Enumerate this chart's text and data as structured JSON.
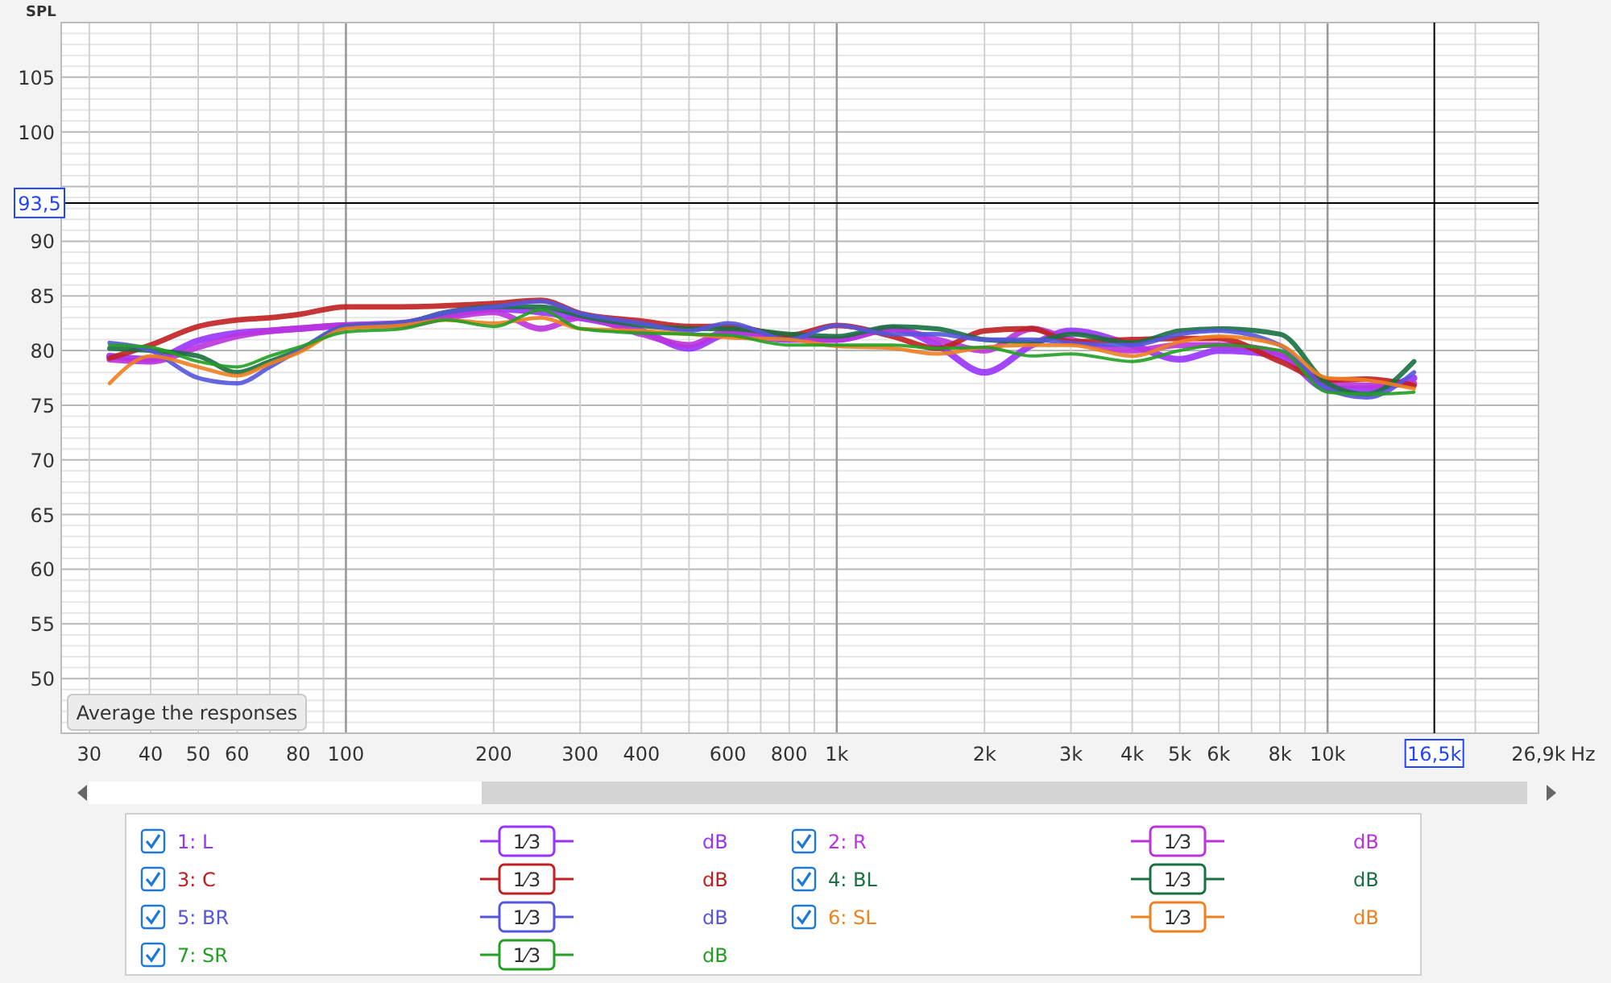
{
  "chart_data": {
    "type": "line",
    "ylabel": "SPL",
    "log": "x",
    "grid": true,
    "legend": "bottom",
    "line_style": "solid",
    "marker": "none",
    "xlim": [
      26.3,
      26900
    ],
    "ylim": [
      45,
      110
    ],
    "xticks": [
      30,
      40,
      50,
      60,
      80,
      100,
      200,
      300,
      400,
      600,
      800,
      {
        "value": 1000,
        "label": "1k"
      },
      {
        "value": 2000,
        "label": "2k"
      },
      {
        "value": 3000,
        "label": "3k"
      },
      {
        "value": 4000,
        "label": "4k"
      },
      {
        "value": 5000,
        "label": "5k"
      },
      {
        "value": 6000,
        "label": "6k"
      },
      {
        "value": 8000,
        "label": "8k"
      },
      {
        "value": 10000,
        "label": "10k"
      },
      {
        "value": 26900,
        "label": "26,9k"
      }
    ],
    "xlabel": "Hz",
    "yticks": [
      50,
      55,
      60,
      65,
      70,
      75,
      80,
      85,
      90,
      {
        "value": 95,
        "label": null
      },
      100,
      105
    ],
    "ref_lines": [
      {
        "axis": "y",
        "value": 93.5,
        "label": "93,5",
        "color": "#000000"
      },
      {
        "axis": "x",
        "value": 16500,
        "label": "16,5k",
        "color": "#000000"
      }
    ],
    "annotations": [
      "Average the responses",
      "1⁄3",
      "dB"
    ],
    "x": [
      33,
      40,
      50,
      60,
      70,
      80,
      100,
      130,
      160,
      200,
      250,
      300,
      400,
      500,
      600,
      800,
      1000,
      1300,
      1600,
      2000,
      2500,
      3000,
      4000,
      5000,
      6000,
      8000,
      10000,
      12000,
      15000
    ],
    "series": [
      {
        "name": "1: L",
        "color": "#9933ff",
        "values": [
          79.5,
          79.2,
          80.9,
          81.6,
          81.8,
          82,
          82.3,
          82.5,
          83.2,
          83.8,
          83.5,
          83,
          81.8,
          80.2,
          81.5,
          81,
          81,
          82,
          80.5,
          78,
          80.5,
          81.8,
          80.5,
          79.2,
          80,
          79.5,
          76.5,
          76.5,
          77.5
        ]
      },
      {
        "name": "2: R",
        "color": "#bb33dd",
        "values": [
          79.2,
          79,
          80.3,
          81.3,
          81.8,
          82,
          82.3,
          82.3,
          83,
          83.5,
          82,
          83,
          81.5,
          80.5,
          81.8,
          81.2,
          81,
          82,
          81,
          80,
          82,
          81,
          80,
          80.5,
          80.5,
          79.8,
          77,
          76.8,
          77
        ]
      },
      {
        "name": "3: C",
        "color": "#c02020",
        "values": [
          79.3,
          80.5,
          82.2,
          82.8,
          83,
          83.3,
          84,
          84,
          84.1,
          84.3,
          84.6,
          83.4,
          82.7,
          82.2,
          82.2,
          81.4,
          82.3,
          81.3,
          80.2,
          81.8,
          82,
          80.8,
          81,
          81.1,
          81.1,
          79,
          77.3,
          77.4,
          76.8
        ]
      },
      {
        "name": "4: BL",
        "color": "#1a7040",
        "values": [
          80.2,
          80,
          79.5,
          78,
          79,
          80,
          82.2,
          82.5,
          83.5,
          84,
          84,
          83.2,
          82.3,
          82,
          82,
          81.5,
          81.3,
          82.2,
          82,
          81,
          80.8,
          81.5,
          80.7,
          81.8,
          82,
          81.5,
          77,
          76,
          79
        ]
      },
      {
        "name": "5: BR",
        "color": "#5555dd",
        "values": [
          80.7,
          80,
          77.5,
          77,
          78.5,
          80,
          82.2,
          82.5,
          83.5,
          84,
          84.5,
          83.4,
          82.5,
          81.8,
          82.5,
          81,
          82.3,
          81.5,
          81.5,
          81,
          81,
          80.7,
          80.5,
          81.5,
          81.8,
          80.5,
          76.5,
          75.7,
          78
        ]
      },
      {
        "name": "6: SL",
        "color": "#f08020",
        "values": [
          77,
          79.5,
          78.5,
          77.7,
          78.8,
          79.8,
          82,
          82.3,
          82.8,
          82.5,
          83,
          82,
          81.8,
          81.5,
          81.2,
          81,
          80.4,
          80.2,
          79.7,
          80.3,
          80.5,
          80.5,
          79.5,
          80.8,
          81.3,
          80.5,
          77.5,
          77.3,
          76.5
        ]
      },
      {
        "name": "7: SR",
        "color": "#22a022",
        "values": [
          80.5,
          80.3,
          79,
          78.5,
          79.5,
          80.3,
          81.7,
          82,
          82.8,
          82.2,
          83.7,
          82,
          81.6,
          81.5,
          81.4,
          80.5,
          80.5,
          80.5,
          80.2,
          80.3,
          79.5,
          79.7,
          79,
          80,
          80.5,
          80,
          76.2,
          76,
          76.2
        ]
      }
    ]
  }
}
